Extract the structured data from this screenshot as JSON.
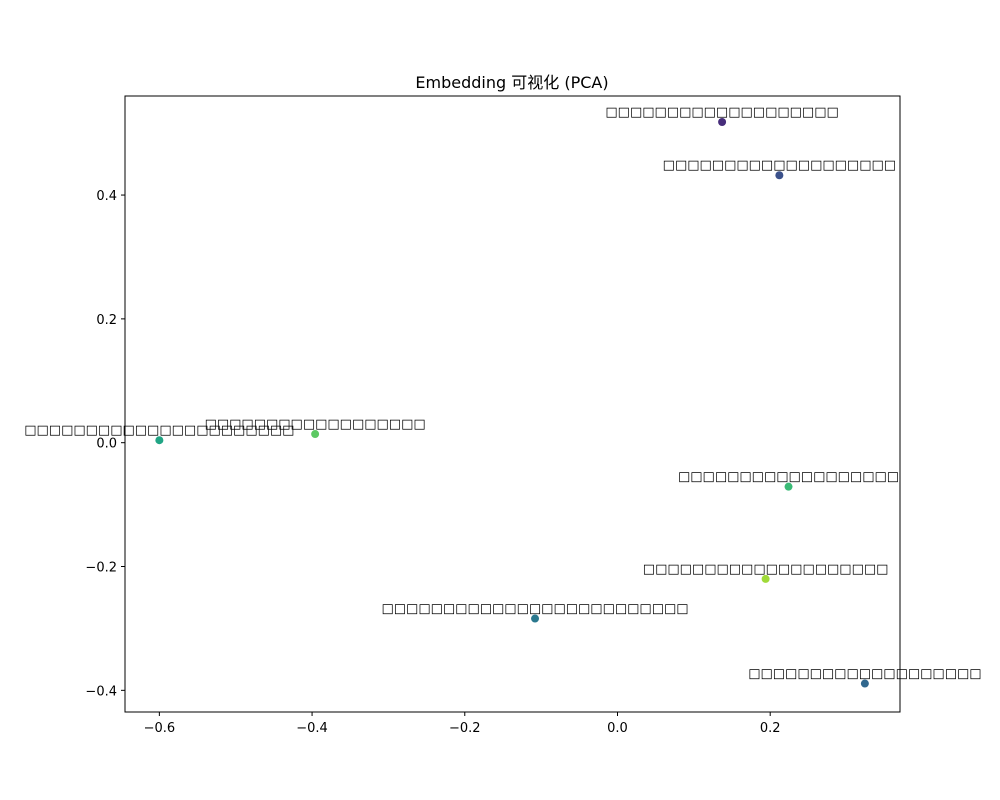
{
  "chart_data": {
    "type": "scatter",
    "title": "Embedding 可视化 (PCA)",
    "xlabel": "",
    "ylabel": "",
    "xlim": [
      -0.645,
      0.37
    ],
    "ylim": [
      -0.435,
      0.56
    ],
    "xticks": [
      -0.6,
      -0.4,
      -0.2,
      0.0,
      0.2
    ],
    "xtick_labels": [
      "−0.6",
      "−0.4",
      "−0.2",
      "0.0",
      "0.2"
    ],
    "yticks": [
      -0.4,
      -0.2,
      0.0,
      0.2,
      0.4
    ],
    "ytick_labels": [
      "−0.4",
      "−0.2",
      "0.0",
      "0.2",
      "0.4"
    ],
    "grid": false,
    "points": [
      {
        "label": "□□□□□□□□□□□□□□□□□□□",
        "x": 0.137,
        "y": 0.518,
        "color": "#472d7b"
      },
      {
        "label": "□□□□□□□□□□□□□□□□□□□",
        "x": 0.212,
        "y": 0.432,
        "color": "#3b518b"
      },
      {
        "label": "□□□□□□□□□□□□□□□□□□□□□□",
        "x": -0.6,
        "y": 0.004,
        "color": "#21a585"
      },
      {
        "label": "□□□□□□□□□□□□□□□□□□",
        "x": -0.396,
        "y": 0.014,
        "color": "#5cc863"
      },
      {
        "label": "□□□□□□□□□□□□□□□□□□",
        "x": 0.224,
        "y": -0.071,
        "color": "#3aba76"
      },
      {
        "label": "□□□□□□□□□□□□□□□□□□□□",
        "x": 0.194,
        "y": -0.22,
        "color": "#a0da39"
      },
      {
        "label": "□□□□□□□□□□□□□□□□□□□□□□□□□",
        "x": -0.108,
        "y": -0.284,
        "color": "#2a788e"
      },
      {
        "label": "□□□□□□□□□□□□□□□□□□□",
        "x": 0.324,
        "y": -0.389,
        "color": "#31688e"
      }
    ]
  }
}
